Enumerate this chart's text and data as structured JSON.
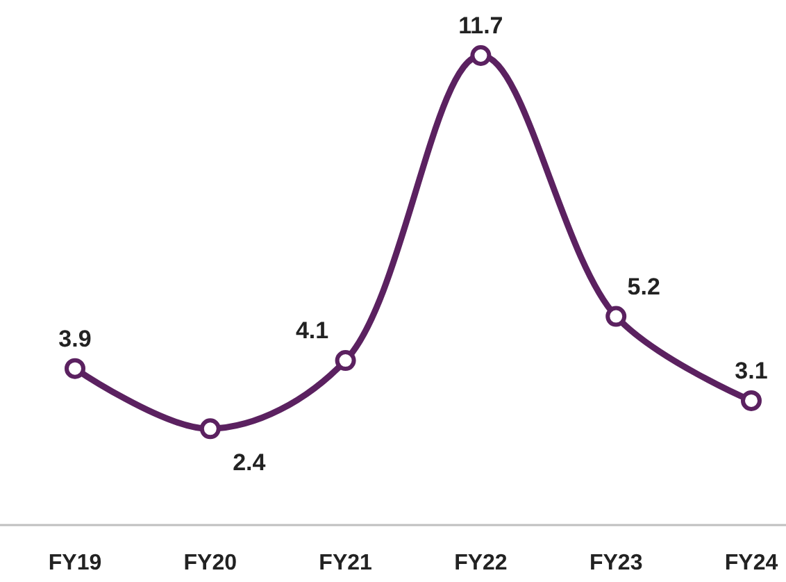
{
  "chart_data": {
    "type": "line",
    "categories": [
      "FY19",
      "FY20",
      "FY21",
      "FY22",
      "FY23",
      "FY24"
    ],
    "series": [
      {
        "color": "#5b2160",
        "values": [
          3.9,
          2.4,
          4.1,
          11.7,
          5.2,
          3.1
        ]
      }
    ],
    "data_labels": true,
    "marker": "circle"
  }
}
